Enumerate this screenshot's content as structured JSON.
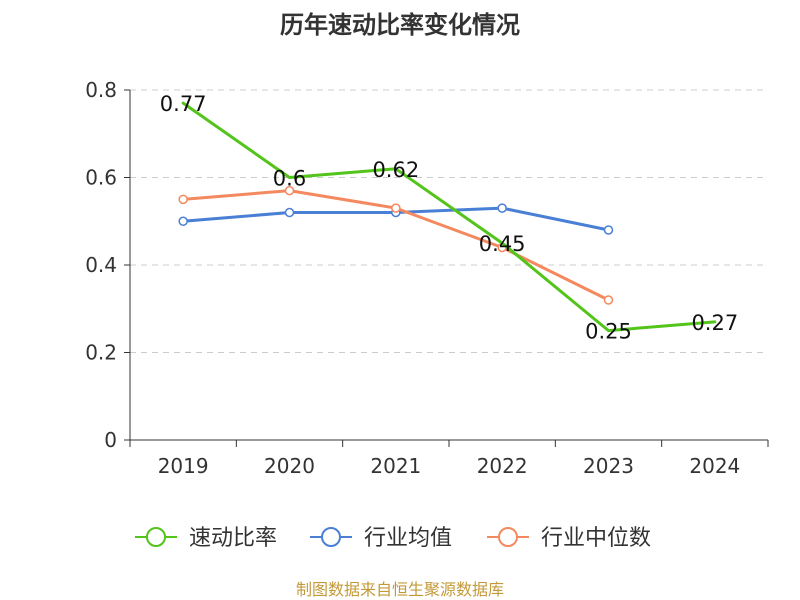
{
  "chart_data": {
    "type": "line",
    "title": "历年速动比率变化情况",
    "categories": [
      "2019",
      "2020",
      "2021",
      "2022",
      "2023",
      "2024"
    ],
    "ylim": [
      0,
      0.8
    ],
    "yticks": [
      {
        "value": 0,
        "label": "0"
      },
      {
        "value": 0.2,
        "label": "0.2"
      },
      {
        "value": 0.4,
        "label": "0.4"
      },
      {
        "value": 0.6,
        "label": "0.6"
      },
      {
        "value": 0.8,
        "label": "0.8"
      }
    ],
    "grid": true,
    "legend_position": "bottom",
    "series": [
      {
        "name": "速动比率",
        "color": "#52c41a",
        "values": [
          0.77,
          0.6,
          0.62,
          0.45,
          0.25,
          0.27
        ],
        "value_labels": [
          "0.77",
          "0.6",
          "0.62",
          "0.45",
          "0.25",
          "0.27"
        ],
        "show_markers": false,
        "show_labels": true
      },
      {
        "name": "行业均值",
        "color": "#4a7fd6",
        "values": [
          0.5,
          0.52,
          0.52,
          0.53,
          0.48,
          null
        ],
        "show_markers": true,
        "show_labels": false
      },
      {
        "name": "行业中位数",
        "color": "#f4895f",
        "values": [
          0.55,
          0.57,
          0.53,
          0.44,
          0.32,
          null
        ],
        "show_markers": true,
        "show_labels": false
      }
    ],
    "source_note": "制图数据来自恒生聚源数据库",
    "source_color": "#c39a3a"
  }
}
